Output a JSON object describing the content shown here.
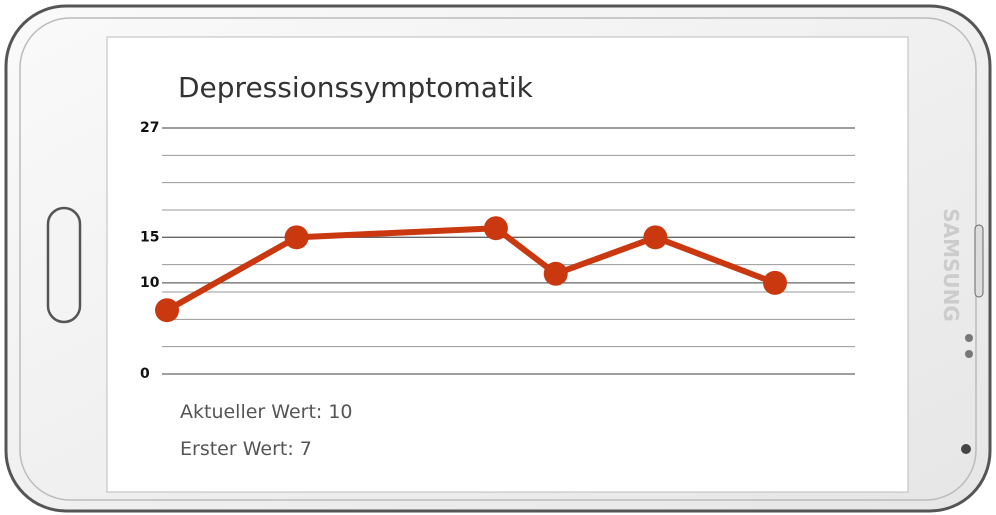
{
  "chart_data": {
    "type": "line",
    "title": "Depressionssymptomatik",
    "x": [
      0,
      13,
      33,
      39,
      49,
      61
    ],
    "xlim": [
      0,
      61
    ],
    "values": [
      7,
      15,
      16,
      11,
      15,
      10
    ],
    "color": "#c9380f",
    "ylim": [
      0,
      27
    ],
    "yticks": [
      0,
      10,
      15,
      27
    ],
    "minor_yticks": [
      3,
      6,
      9,
      12,
      18,
      21,
      24
    ],
    "grid": true,
    "annotations": [
      "Aktueller Wert: 10",
      "Erster Wert: 7"
    ]
  }
}
